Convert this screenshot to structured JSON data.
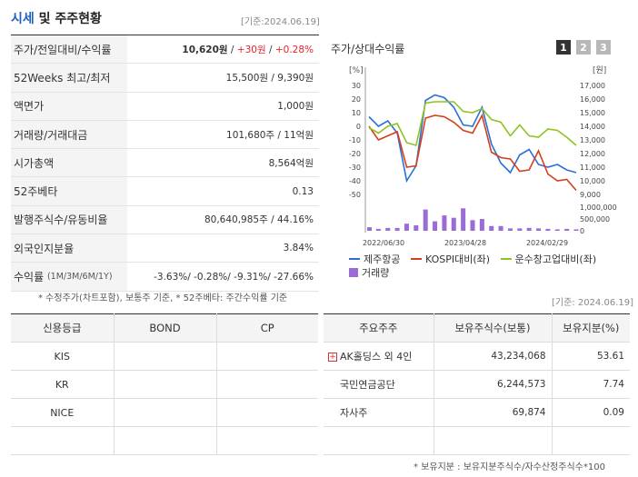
{
  "header": {
    "title_accent": "시세",
    "title_rest": " 및 주주현황",
    "base_date": "[기준:2024.06.19]"
  },
  "quote_rows": [
    {
      "label": "주가/전일대비/수익률"
    },
    {
      "label": "52Weeks 최고/최저",
      "value": "15,500원 / 9,390원"
    },
    {
      "label": "액면가",
      "value": "1,000원"
    },
    {
      "label": "거래량/거래대금",
      "value": "101,680주 / 11억원"
    },
    {
      "label": "시가총액",
      "value": "8,564억원"
    },
    {
      "label": "52주베타",
      "value": "0.13"
    },
    {
      "label": "발행주식수/유동비율",
      "value": "80,640,985주 / 44.16%"
    },
    {
      "label": "외국인지분율",
      "value": "3.84%"
    },
    {
      "label": "수익률",
      "sub": "(1M/3M/6M/1Y)"
    }
  ],
  "price": {
    "value": "10,620원",
    "sep": " / ",
    "change": "+30원",
    "sep2": " / ",
    "rate": "+0.28%"
  },
  "returns": "-3.63%/ -0.28%/ -9.31%/ -27.66%",
  "notes": {
    "left": "* 수정주가(차트포함), 보통주 기준, * 52주베타: 주간수익률 기준",
    "base_date2": "[기준: 2024.06.19]",
    "bottom": "* 보유지분 : 보유지분주식수/자수산정주식수*100"
  },
  "chart_panel": {
    "title": "주가/상대수익률",
    "tabs": [
      "1",
      "2",
      "3"
    ]
  },
  "chart_data": {
    "type": "line",
    "left_axis_unit": "[%]",
    "right_axis_unit": "[원]",
    "left_ticks": [
      30,
      20,
      10,
      0,
      -10,
      -20,
      -30,
      -40,
      -50
    ],
    "right_ticks": [
      "17,000",
      "16,000",
      "15,000",
      "14,000",
      "13,000",
      "12,000",
      "11,000",
      "10,000",
      "9,000"
    ],
    "volume_ticks": [
      "1,000,000",
      "500,000",
      "0"
    ],
    "x_ticks": [
      "2022/06/30",
      "2023/04/28",
      "2024/02/29"
    ],
    "ylim_left": [
      -50,
      30
    ],
    "series": [
      {
        "name": "제주항공",
        "color": "#2b6fd6",
        "values": [
          7,
          0,
          4,
          -5,
          -40,
          -29,
          19,
          23,
          21,
          14,
          1,
          0,
          14,
          -13,
          -27,
          -34,
          -21,
          -17,
          -28,
          -30,
          -28,
          -32,
          -34
        ]
      },
      {
        "name": "KOSPI대비(좌)",
        "color": "#d4401c",
        "values": [
          0,
          -10,
          -7,
          -4,
          -30,
          -29,
          6,
          8,
          7,
          3,
          -3,
          -5,
          8,
          -19,
          -23,
          -24,
          -33,
          -32,
          -18,
          -35,
          -40,
          -39,
          -47
        ]
      },
      {
        "name": "운수창고업대비(좌)",
        "color": "#8fc31f",
        "values": [
          -1,
          -5,
          0,
          2,
          -12,
          -14,
          17,
          18,
          18,
          18,
          11,
          10,
          13,
          5,
          3,
          -7,
          1,
          -7,
          -8,
          -2,
          -3,
          -8,
          -14
        ]
      }
    ],
    "volume": {
      "name": "거래량",
      "color": "#9b6bd6",
      "values": [
        150000,
        80000,
        120000,
        120000,
        300000,
        230000,
        900000,
        400000,
        650000,
        550000,
        950000,
        450000,
        500000,
        200000,
        200000,
        100000,
        100000,
        120000,
        100000,
        80000,
        60000,
        80000,
        60000
      ]
    }
  },
  "credit_table": {
    "headers": [
      "신용등급",
      "BOND",
      "CP"
    ],
    "rows": [
      [
        "KIS",
        "",
        ""
      ],
      [
        "KR",
        "",
        ""
      ],
      [
        "NICE",
        "",
        ""
      ],
      [
        "",
        "",
        ""
      ]
    ]
  },
  "shareholder_table": {
    "headers": [
      "주요주주",
      "보유주식수(보통)",
      "보유지분(%)"
    ],
    "rows": [
      {
        "name": "AK홀딩스 외 4인",
        "shares": "43,234,068",
        "pct": "53.61",
        "expand": "+"
      },
      {
        "name": "국민연금공단",
        "shares": "6,244,573",
        "pct": "7.74"
      },
      {
        "name": "자사주",
        "shares": "69,874",
        "pct": "0.09"
      }
    ]
  }
}
